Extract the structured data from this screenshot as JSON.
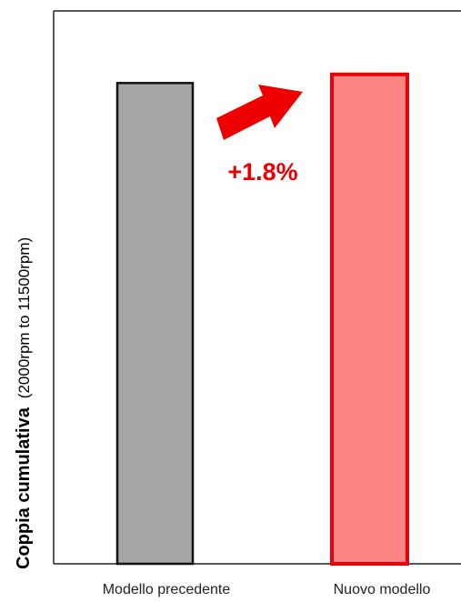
{
  "chart_data": {
    "type": "bar",
    "categories": [
      "Modello precedente",
      "Nuovo modello"
    ],
    "values": [
      100,
      101.8
    ],
    "ylim": [
      0,
      115
    ],
    "ylabel_main": "Coppia cumulativa",
    "ylabel_note": "(2000rpm to 11500rpm)",
    "annotation": "+1.8%",
    "colors": {
      "bar_fills": [
        "#a6a6a6",
        "#ff8585"
      ],
      "bar_strokes": [
        "#111111",
        "#e8000b"
      ],
      "annotation": "#ee0000",
      "arrow": "#ee0000",
      "axis": "#222222"
    },
    "grid": false,
    "legend": "none"
  }
}
